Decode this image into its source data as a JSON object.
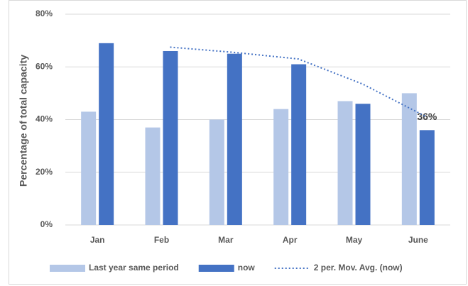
{
  "chart_data": {
    "type": "bar",
    "y_label": "Percentage of total capacity",
    "categories": [
      "Jan",
      "Feb",
      "Mar",
      "Apr",
      "May",
      "June"
    ],
    "series": [
      {
        "name": "Last year same period",
        "color": "#b4c7e7",
        "values": [
          43,
          37,
          40,
          44,
          47,
          50
        ]
      },
      {
        "name": "now",
        "color": "#4472c4",
        "values": [
          69,
          66,
          65,
          61,
          46,
          36
        ],
        "value_labels": [
          null,
          null,
          null,
          null,
          null,
          "36%"
        ]
      },
      {
        "name": "2 per. Mov. Avg. (now)",
        "color": "#4472c4",
        "type": "line",
        "dash": "dotted",
        "values": [
          null,
          67.5,
          65.5,
          63,
          53.5,
          41
        ]
      }
    ],
    "ylim": [
      0,
      80
    ],
    "yticks": [
      {
        "value": 0,
        "label": "0%"
      },
      {
        "value": 20,
        "label": "20%"
      },
      {
        "value": 40,
        "label": "40%"
      },
      {
        "value": 60,
        "label": "60%"
      },
      {
        "value": 80,
        "label": "80%"
      }
    ],
    "grid": true,
    "legend": "bottom"
  }
}
